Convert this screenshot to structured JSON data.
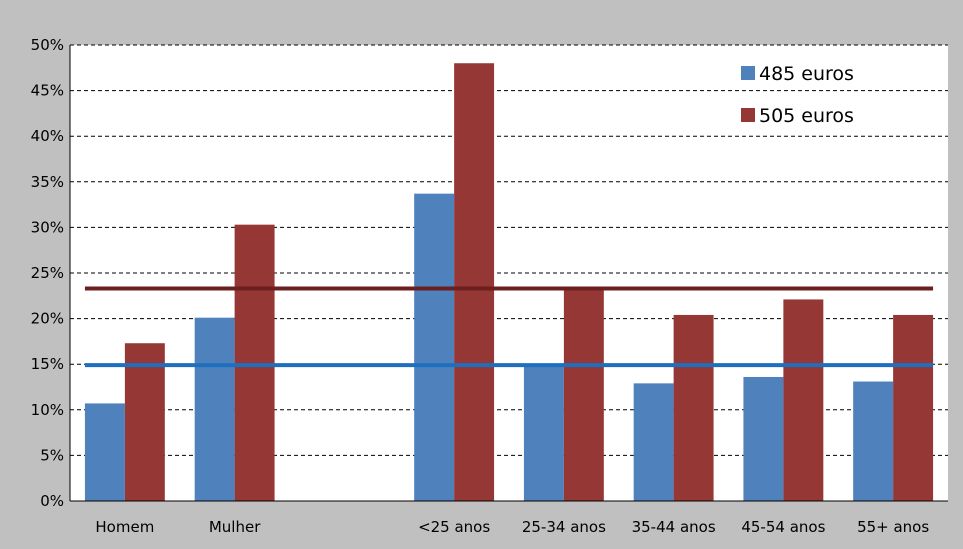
{
  "chart_data": {
    "type": "bar",
    "categories": [
      "Homem",
      "Mulher",
      "",
      "<25 anos",
      "25-34 anos",
      "35-44 anos",
      "45-54 anos",
      "55+ anos"
    ],
    "series": [
      {
        "name": "485 euros",
        "color": "#4f81bd",
        "values": [
          10.7,
          20.1,
          null,
          33.7,
          15.0,
          12.9,
          13.6,
          13.1
        ]
      },
      {
        "name": "505 euros",
        "color": "#953735",
        "values": [
          17.3,
          30.3,
          null,
          48.0,
          23.3,
          20.4,
          22.1,
          20.4
        ]
      }
    ],
    "reference_lines": [
      {
        "series": "485 euros",
        "value": 14.9,
        "color": "#1f6fbf"
      },
      {
        "series": "505 euros",
        "value": 23.3,
        "color": "#6b1f1f"
      }
    ],
    "ylim": [
      0,
      50
    ],
    "y_ticks": [
      0,
      5,
      10,
      15,
      20,
      25,
      30,
      35,
      40,
      45,
      50
    ],
    "y_tick_format": "percent",
    "grid": "horizontal-dashed",
    "legend_position": "top-right",
    "title": "",
    "xlabel": "",
    "ylabel": ""
  }
}
